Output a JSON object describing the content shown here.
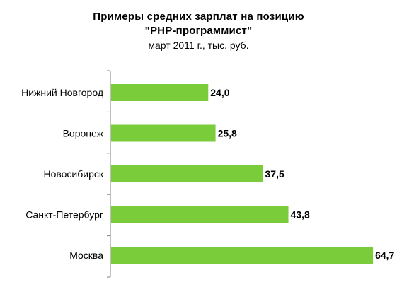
{
  "chart_data": {
    "type": "bar",
    "orientation": "horizontal",
    "title": [
      "Примеры средних зарплат на позицию",
      "\"PHP-программист\""
    ],
    "subtitle": "март 2011 г., тыс. руб.",
    "categories": [
      "Нижний Новгород",
      "Воронеж",
      "Новосибирск",
      "Санкт-Петербург",
      "Москва"
    ],
    "values": [
      24.0,
      25.8,
      37.5,
      43.8,
      64.7
    ],
    "value_labels": [
      "24,0",
      "25,8",
      "37,5",
      "43,8",
      "64,7"
    ],
    "xlim": [
      0,
      70
    ],
    "xlabel": "",
    "ylabel": "",
    "grid": false,
    "legend": "none",
    "bar_color": "#7ACC3A",
    "axis_color": "#808080"
  }
}
